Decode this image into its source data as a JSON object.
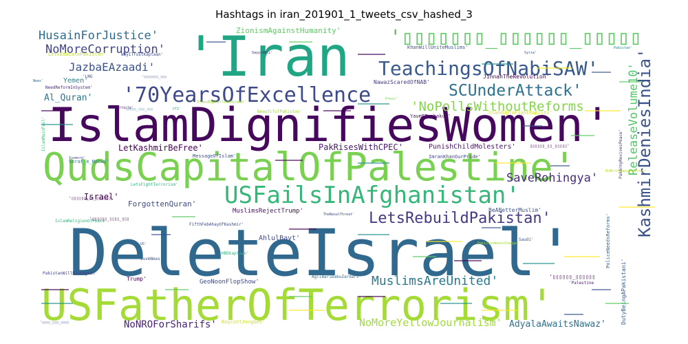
{
  "chart_data": {
    "type": "wordcloud",
    "title": "Hashtags in iran_201901_1_tweets_csv_hashed_3",
    "words": [
      {
        "text": "DeleteIsrael'",
        "weight": 100,
        "color": "#31688e"
      },
      {
        "text": "IslamDignifiesWomen'",
        "weight": 78,
        "color": "#46085c"
      },
      {
        "text": "'Iran",
        "weight": 84,
        "color": "#21a685"
      },
      {
        "text": "USFatherOfTerrorism'",
        "weight": 70,
        "color": "#a5db36"
      },
      {
        "text": "QudsCapitalOfPalestine'",
        "weight": 62,
        "color": "#7ad151"
      },
      {
        "text": "USFailsInAfghanistan'",
        "weight": 38,
        "color": "#35b779"
      },
      {
        "text": "'70YearsOfExcellence",
        "weight": 33,
        "color": "#3e4989"
      },
      {
        "text": "TeachingsOfNabiSAW'",
        "weight": 30,
        "color": "#38598c"
      },
      {
        "text": "'▯▯▯▯▯▯▯_▯▯▯▯▯▯_▯▯▯▯▯",
        "weight": 30,
        "color": "#5ec962"
      },
      {
        "text": "KashmirDeniesIndia'",
        "weight": 28,
        "color": "#3b528b"
      },
      {
        "text": "SCUnderAttack'",
        "weight": 25,
        "color": "#2c728e"
      },
      {
        "text": "LetsRebuildPakistan'",
        "weight": 24,
        "color": "#443983"
      },
      {
        "text": "'NoPollsWithoutReforms",
        "weight": 21,
        "color": "#85d54a"
      },
      {
        "text": "MuslimsAreUnited'",
        "weight": 19,
        "color": "#2a788e"
      },
      {
        "text": "SaveRohingya'",
        "weight": 18,
        "color": "#472d7b"
      },
      {
        "text": "ReleaseVolume10'",
        "weight": 18,
        "color": "#52c569"
      },
      {
        "text": "HusainForJustice'",
        "weight": 18,
        "color": "#2f6b8e"
      },
      {
        "text": "NoMoreCorruption'",
        "weight": 18,
        "color": "#414487"
      },
      {
        "text": "JazbaEAzaadi'",
        "weight": 16,
        "color": "#3b528b"
      },
      {
        "text": "NoMoreYellowJournalism'",
        "weight": 15,
        "color": "#9fda3a"
      },
      {
        "text": "NoNROForSharifs'",
        "weight": 14,
        "color": "#482475"
      },
      {
        "text": "AdyalaAwaitsNawaz'",
        "weight": 13,
        "color": "#2c728e"
      },
      {
        "text": "Al_Quran'",
        "weight": 13,
        "color": "#2a788e"
      },
      {
        "text": "PakRisesWithCPEC'",
        "weight": 12,
        "color": "#481b6d"
      },
      {
        "text": "LetKashmirBeFree'",
        "weight": 12,
        "color": "#440154"
      },
      {
        "text": "Israel'",
        "weight": 12,
        "color": "#440154"
      },
      {
        "text": "ForgottenQuran'",
        "weight": 11,
        "color": "#3e4989"
      },
      {
        "text": "ZionismAgainstHumanity'",
        "weight": 11,
        "color": "#5ec962"
      },
      {
        "text": "Yemen'",
        "weight": 10,
        "color": "#26828e"
      },
      {
        "text": "AhlulBayt'",
        "weight": 10,
        "color": "#3e4989"
      },
      {
        "text": "PunishChildMolesters'",
        "weight": 10,
        "color": "#481668"
      },
      {
        "text": "GeoNoonFlopShow'",
        "weight": 9,
        "color": "#3e4989"
      },
      {
        "text": "MuslimsRejectTrump'",
        "weight": 9,
        "color": "#471063"
      },
      {
        "text": "BeABetterMuslim'",
        "weight": 8,
        "color": "#3b528b"
      },
      {
        "text": "DutyBeingAPakistani'",
        "weight": 8,
        "color": "#355f8d"
      },
      {
        "text": "Trump'",
        "weight": 8,
        "color": "#440154"
      },
      {
        "text": "JinnahTheRevolution'",
        "weight": 8,
        "color": "#440154"
      },
      {
        "text": "NawazScaredOfNAB'",
        "weight": 8,
        "color": "#433e85"
      },
      {
        "text": "KhanWillUniteMuslims'",
        "weight": 7,
        "color": "#3b528b"
      },
      {
        "text": "LetsEducatePakistan'",
        "weight": 7,
        "color": "#bddf26"
      },
      {
        "text": "BoycottJangGeo'",
        "weight": 7,
        "color": "#d0e11c"
      },
      {
        "text": "PoliceNeedsReforms'",
        "weight": 7,
        "color": "#31688e"
      },
      {
        "text": "YaumETashakur'",
        "weight": 7,
        "color": "#481668"
      },
      {
        "text": "StandUpToFightRapists'",
        "weight": 7,
        "color": "#d8e219"
      },
      {
        "text": "ImranKhanOurPride'",
        "weight": 7,
        "color": "#3f4788"
      },
      {
        "text": "MessageOfIslam'",
        "weight": 7,
        "color": "#3b528b"
      },
      {
        "text": "Serat_e_Nabwi'",
        "weight": 7,
        "color": "#2a788e"
      },
      {
        "text": "NeedReformInSystem'",
        "weight": 6,
        "color": "#472c7a"
      },
      {
        "text": "WhyITrustKaptaan'",
        "weight": 6,
        "color": "#3e4989"
      },
      {
        "text": "BeautifulPakistan'",
        "weight": 6,
        "color": "#a0da39"
      },
      {
        "text": "StandUpForTeamGreen'",
        "weight": 6,
        "color": "#a0da39"
      },
      {
        "text": "LetsFightTerrorism'",
        "weight": 6,
        "color": "#2fb47c"
      },
      {
        "text": "IslamReligionOfPeace'",
        "weight": 6,
        "color": "#35b779"
      },
      {
        "text": "FifthFebAhayOfKashmir'",
        "weight": 6,
        "color": "#3e4989"
      },
      {
        "text": "'Palestine",
        "weight": 6,
        "color": "#481668"
      },
      {
        "text": "PakistanWillRiseAgain'",
        "weight": 6,
        "color": "#414487"
      },
      {
        "text": "IslamMainFasl'",
        "weight": 6,
        "color": "#38b977"
      },
      {
        "text": "Saudi'",
        "weight": 6,
        "color": "#3b528b"
      },
      {
        "text": "HBDkaptaan'",
        "weight": 6,
        "color": "#2fb47c"
      },
      {
        "text": "AgliBariDakuZardari'",
        "weight": 6,
        "color": "#31688e"
      },
      {
        "text": "IuvmNews'",
        "weight": 6,
        "color": "#3b528b"
      },
      {
        "text": "PakArmyRevivesPeace'",
        "weight": 6,
        "color": "#46337e"
      },
      {
        "text": "SayyidAli'",
        "weight": 5,
        "color": "#482878"
      },
      {
        "text": "Article'",
        "weight": 5,
        "color": "#481c6e"
      },
      {
        "text": "Pakistan'",
        "weight": 5,
        "color": "#26828e"
      },
      {
        "text": "Syria'",
        "weight": 5,
        "color": "#3b528b"
      },
      {
        "text": "'LNG",
        "weight": 6,
        "color": "#3e4989"
      },
      {
        "text": "News'",
        "weight": 5,
        "color": "#31688e"
      },
      {
        "text": "Press'",
        "weight": 5,
        "color": "#7ad151"
      },
      {
        "text": "PTI'",
        "weight": 5,
        "color": "#35b779"
      },
      {
        "text": "US'",
        "weight": 5,
        "color": "#3b528b"
      },
      {
        "text": "TheNaxalThreat'",
        "weight": 5,
        "color": "#3e4989"
      },
      {
        "text": "NoMoreSympathyVotes'",
        "weight": 5,
        "color": "#bddf26"
      },
      {
        "text": "Iuvmorg'",
        "weight": 5,
        "color": "#3e4989"
      },
      {
        "text": "PakistanWantsChange'",
        "weight": 5,
        "color": "#a0da39"
      },
      {
        "text": "'▯▯▯▯▯▯_▯▯▯▯▯▯",
        "weight": 8,
        "color": "#440154"
      },
      {
        "text": "'▯▯▯▯▯▯_▯▯_▯▯▯▯▯▯",
        "weight": 6,
        "color": "#440154"
      },
      {
        "text": "▯▯▯▯▯▯_▯▯_▯▯▯▯▯'",
        "weight": 6,
        "color": "#440154"
      },
      {
        "text": "'▯▯▯▯▯▯▯_▯▯▯",
        "weight": 5,
        "color": "#3e4989"
      },
      {
        "text": "'▯▯▯▯_▯▯▯_▯▯▯▯",
        "weight": 5,
        "color": "#3e4989"
      },
      {
        "text": "'▯▯▯▯▯_▯▯▯_▯▯▯",
        "weight": 5,
        "color": "#2a788e"
      },
      {
        "text": "'▯▯▯▯▯▯_▯▯▯▯_▯▯▯",
        "weight": 6,
        "color": "#440154"
      }
    ]
  }
}
